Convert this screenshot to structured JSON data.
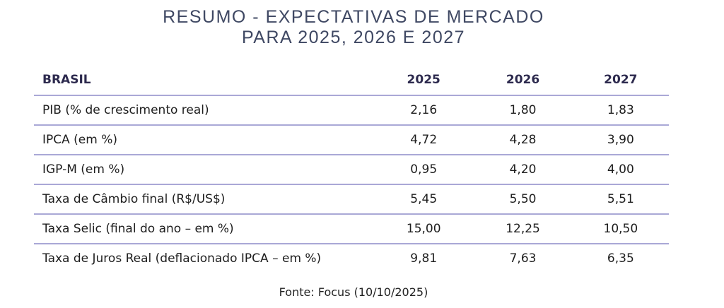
{
  "title": {
    "line1": "RESUMO - EXPECTATIVAS DE MERCADO",
    "line2": "PARA 2025, 2026 E 2027"
  },
  "table": {
    "headers": [
      "BRASIL",
      "2025",
      "2026",
      "2027"
    ],
    "rows": [
      {
        "label": "PIB (% de crescimento real)",
        "values": [
          "2,16",
          "1,80",
          "1,83"
        ]
      },
      {
        "label": "IPCA (em %)",
        "values": [
          "4,72",
          "4,28",
          "3,90"
        ]
      },
      {
        "label": "IGP-M (em %)",
        "values": [
          "0,95",
          "4,20",
          "4,00"
        ]
      },
      {
        "label": "Taxa de Câmbio final (R$/US$)",
        "values": [
          "5,45",
          "5,50",
          "5,51"
        ]
      },
      {
        "label": "Taxa Selic (final do ano – em %)",
        "values": [
          "15,00",
          "12,25",
          "10,50"
        ]
      },
      {
        "label": "Taxa de Juros Real (deflacionado IPCA – em %)",
        "values": [
          "9,81",
          "7,63",
          "6,35"
        ]
      }
    ]
  },
  "source": "Fonte: Focus (10/10/2025)",
  "colors": {
    "title": "#3f4863",
    "header": "#2d2a4e",
    "rule": "#aaa8d6"
  }
}
